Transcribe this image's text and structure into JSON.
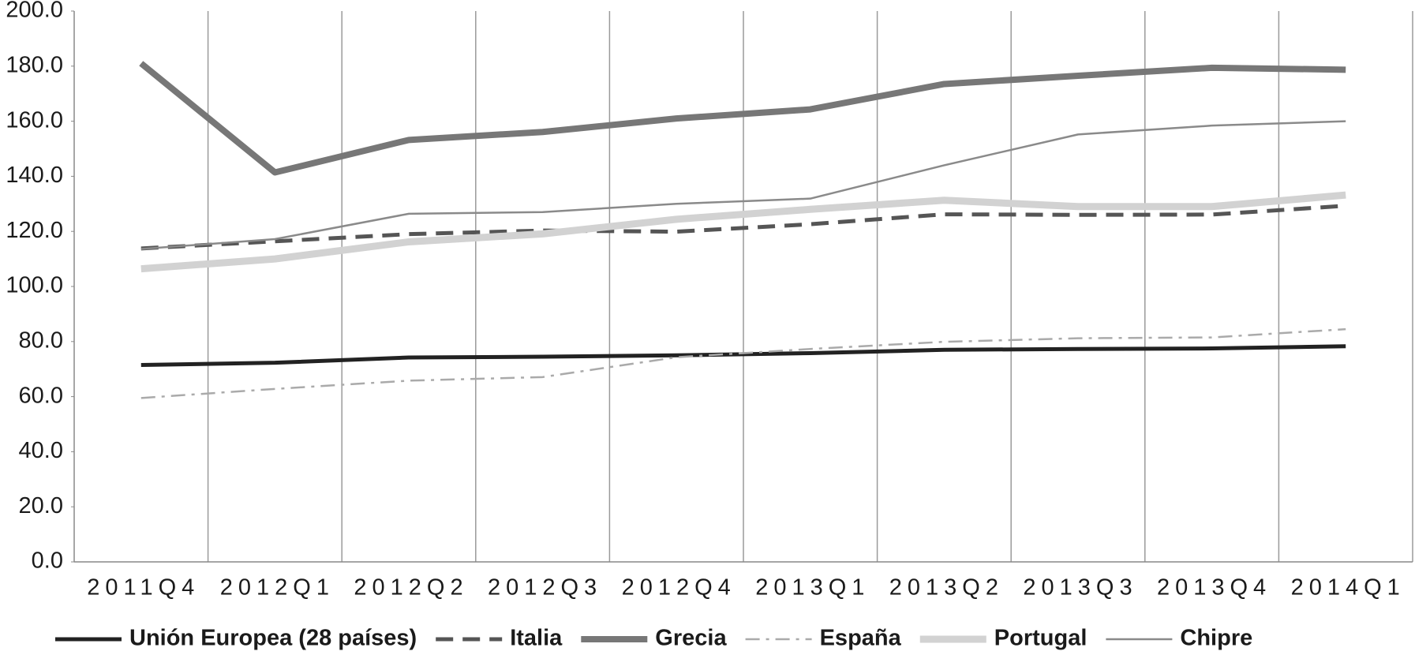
{
  "chart_data": {
    "type": "line",
    "categories": [
      "2011Q4",
      "2012Q1",
      "2012Q2",
      "2012Q3",
      "2012Q4",
      "2013Q1",
      "2013Q2",
      "2013Q3",
      "2013Q4",
      "2014Q1"
    ],
    "ylim": [
      0,
      200
    ],
    "yticks": [
      {
        "value": 0,
        "label": "0.0"
      },
      {
        "value": 20,
        "label": "20.0"
      },
      {
        "value": 40,
        "label": "40.0"
      },
      {
        "value": 60,
        "label": "60.0"
      },
      {
        "value": 80,
        "label": "80.0"
      },
      {
        "value": 100,
        "label": "100.0"
      },
      {
        "value": 120,
        "label": "120.0"
      },
      {
        "value": 140,
        "label": "140.0"
      },
      {
        "value": 160,
        "label": "160.0"
      },
      {
        "value": 180,
        "label": "180.0"
      },
      {
        "value": 200,
        "label": "200.0"
      }
    ],
    "grid": "vertical",
    "legend": "bottom",
    "series": [
      {
        "name": "Unión Europea (28 países)",
        "color": "#222222",
        "dash": "solid",
        "values": [
          71.5,
          72.3,
          74.2,
          74.5,
          75.0,
          75.8,
          77.0,
          77.3,
          77.5,
          78.3
        ]
      },
      {
        "name": "Italia",
        "color": "#555555",
        "dash": "dashed",
        "values": [
          113.8,
          116.4,
          119.0,
          120.3,
          119.9,
          122.6,
          126.2,
          126.0,
          126.1,
          129.3
        ]
      },
      {
        "name": "Grecia",
        "color": "#777777",
        "dash": "solid",
        "values": [
          181.0,
          141.4,
          153.2,
          156.1,
          161.0,
          164.3,
          173.5,
          176.5,
          179.4,
          178.7
        ]
      },
      {
        "name": "España",
        "color": "#aaaaaa",
        "dash": "dashdot",
        "values": [
          59.5,
          62.8,
          65.8,
          67.1,
          74.3,
          77.3,
          79.9,
          81.2,
          81.5,
          84.5
        ]
      },
      {
        "name": "Portugal",
        "color": "#d2d2d2",
        "dash": "solid",
        "values": [
          106.4,
          110.0,
          116.2,
          119.1,
          124.4,
          128.0,
          131.3,
          129.0,
          129.0,
          133.2
        ]
      },
      {
        "name": "Chipre",
        "color": "#8a8a8a",
        "dash": "solid",
        "values": [
          113.6,
          117.2,
          126.4,
          127.0,
          130.0,
          131.9,
          144.0,
          155.2,
          158.4,
          160.0
        ]
      }
    ]
  }
}
